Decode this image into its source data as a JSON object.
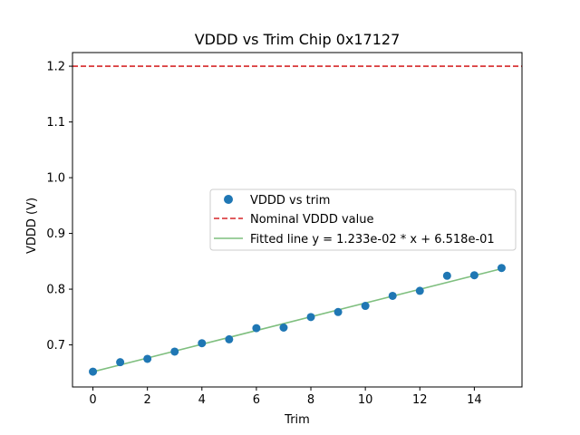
{
  "chart_data": {
    "type": "scatter",
    "title": "VDDD vs Trim Chip 0x17127",
    "xlabel": "Trim",
    "ylabel": "VDDD (V)",
    "xlim": [
      -0.75,
      15.75
    ],
    "ylim": [
      0.6245,
      1.2245
    ],
    "xticks": [
      0,
      2,
      4,
      6,
      8,
      10,
      12,
      14
    ],
    "yticks": [
      0.7,
      0.8,
      0.9,
      1.0,
      1.1,
      1.2
    ],
    "ytick_labels": [
      "0.7",
      "0.8",
      "0.9",
      "1.0",
      "1.1",
      "1.2"
    ],
    "grid": false,
    "legend_position": "center-right",
    "series": [
      {
        "name": "VDDD vs trim",
        "kind": "scatter",
        "color": "#1f77b4",
        "x": [
          0,
          1,
          2,
          3,
          4,
          5,
          6,
          7,
          8,
          9,
          10,
          11,
          12,
          13,
          14,
          15
        ],
        "y": [
          0.652,
          0.669,
          0.675,
          0.688,
          0.703,
          0.71,
          0.73,
          0.731,
          0.75,
          0.759,
          0.77,
          0.788,
          0.797,
          0.824,
          0.825,
          0.838
        ]
      },
      {
        "name": "Nominal VDDD value",
        "kind": "hline",
        "color": "#d62728",
        "y": 1.2
      },
      {
        "name": "Fitted line y = 1.233e-02 * x + 6.518e-01",
        "kind": "line",
        "color": "#7fbf7f",
        "slope": 0.01233,
        "intercept": 0.6518,
        "x": [
          0,
          15
        ]
      }
    ]
  }
}
